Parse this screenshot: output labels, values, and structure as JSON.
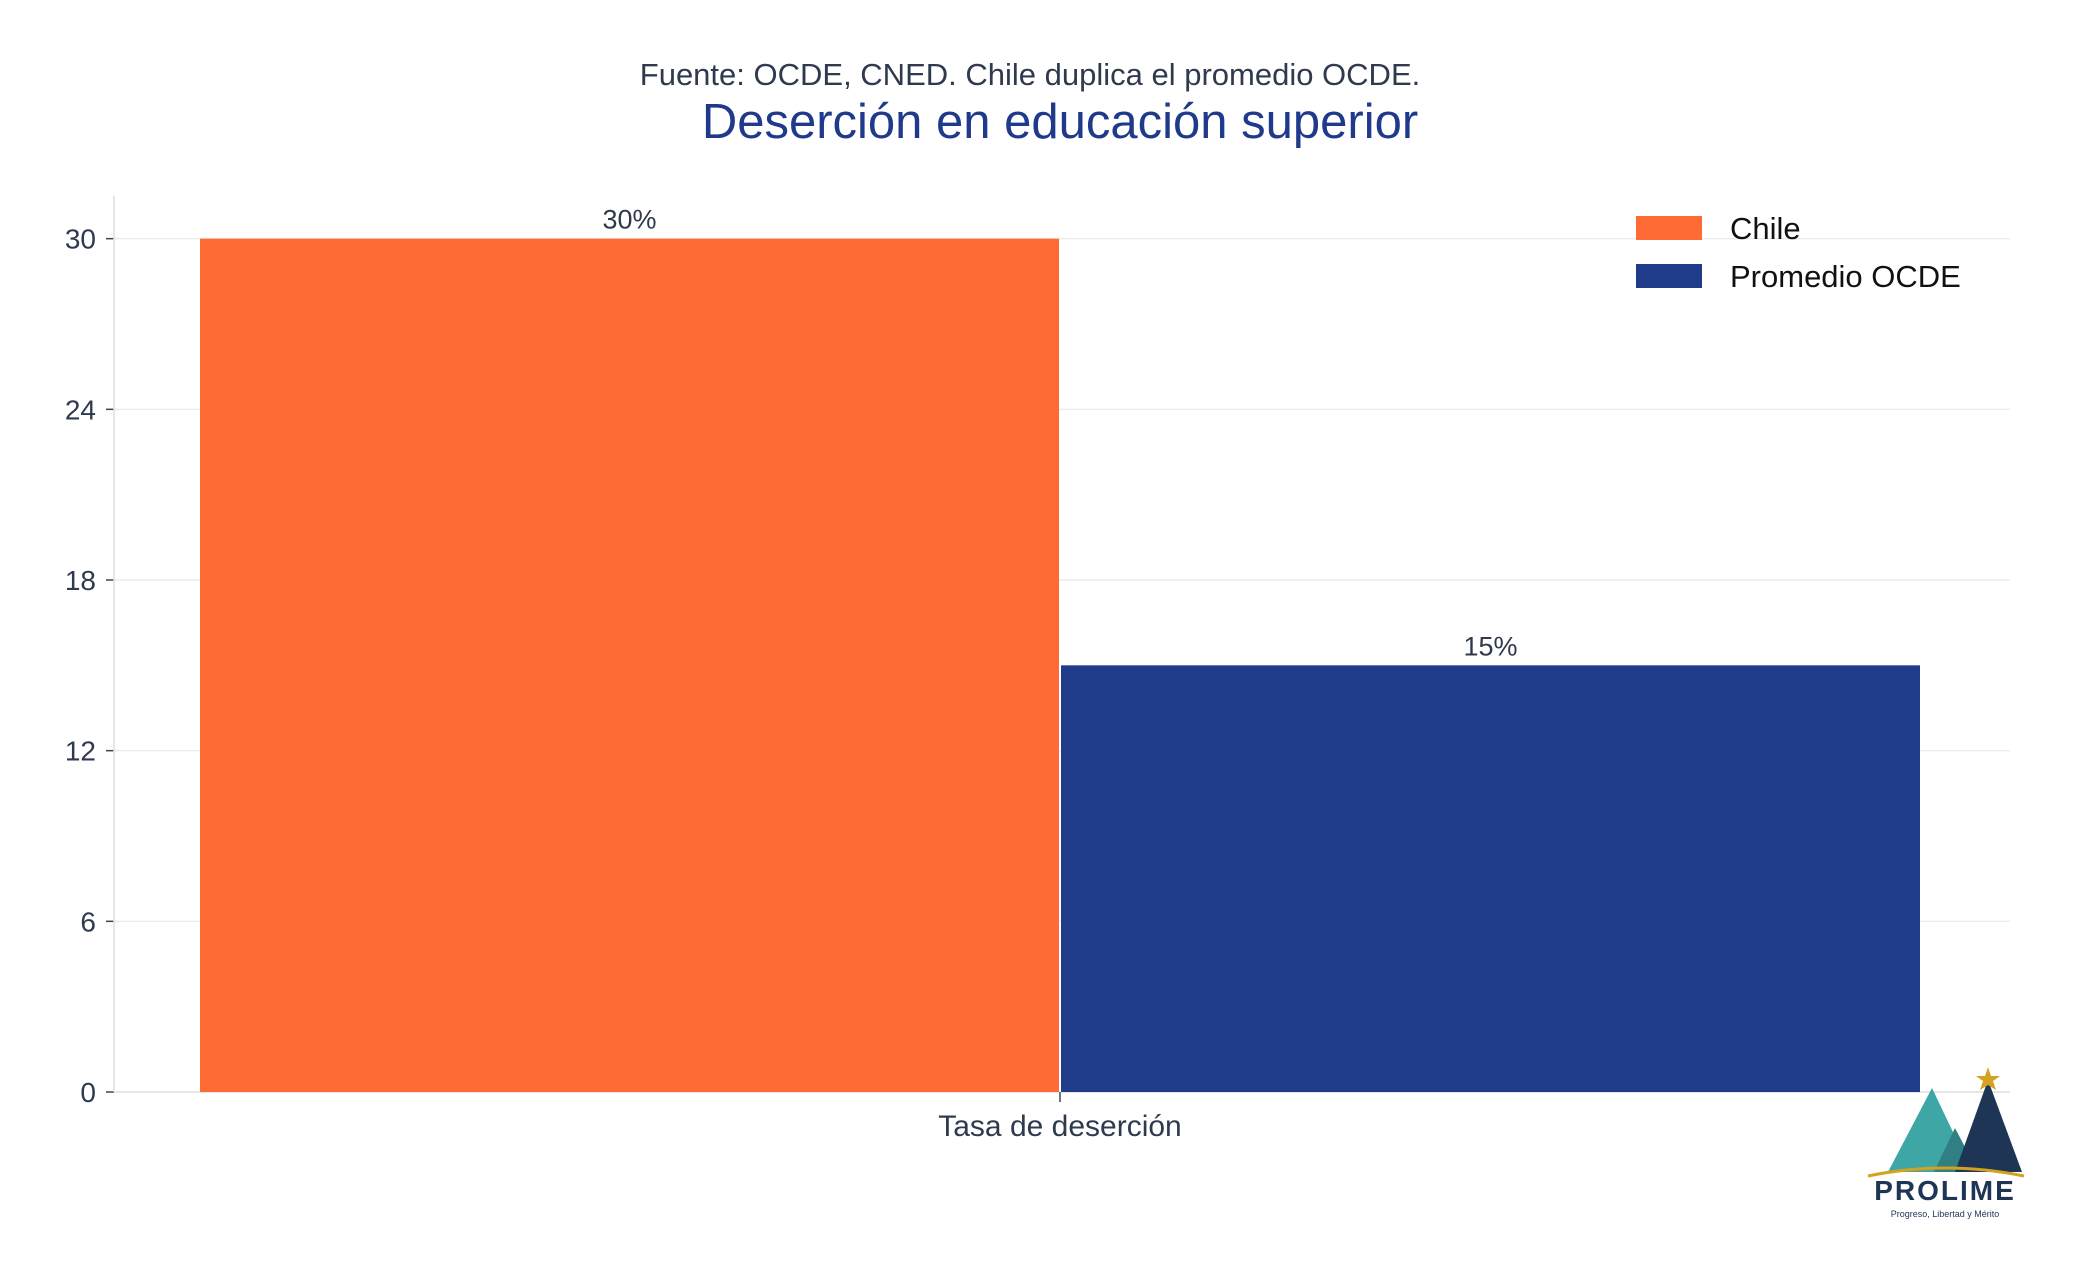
{
  "chart_data": {
    "type": "bar",
    "subtitle": "Fuente: OCDE, CNED. Chile duplica el promedio OCDE.",
    "title": "Deserción en educación superior",
    "categories": [
      "Tasa de deserción"
    ],
    "series": [
      {
        "name": "Chile",
        "values": [
          30
        ],
        "labels": [
          "30%"
        ],
        "color": "#ff6b35"
      },
      {
        "name": "Promedio OCDE",
        "values": [
          15
        ],
        "labels": [
          "15%"
        ],
        "color": "#1f3b8a"
      }
    ],
    "xlabel": "",
    "ylabel": "",
    "ylim": [
      0,
      31.5
    ],
    "yticks": [
      0,
      6,
      12,
      18,
      24,
      30
    ],
    "grid": true,
    "legend_position": "top-right"
  },
  "logo": {
    "name": "PROLIME",
    "tagline": "Progreso, Libertad y Mérito",
    "colors": {
      "teal": "#3fa6a6",
      "navy": "#1f3556",
      "gold": "#d4a21e"
    }
  }
}
